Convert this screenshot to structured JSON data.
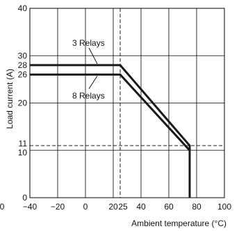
{
  "chart_data": {
    "type": "line",
    "title": "",
    "xlabel": "Ambient temperature (°C)",
    "ylabel": "Load current (A)",
    "xlim": [
      -40,
      100
    ],
    "ylim": [
      0,
      40
    ],
    "x_ticks": [
      -40,
      -20,
      0,
      20,
      25,
      40,
      60,
      80,
      100
    ],
    "x_tick_labels": [
      "−40",
      "−20",
      "0",
      "20",
      "25",
      "40",
      "60",
      "80",
      "100"
    ],
    "y_ticks": [
      0,
      10,
      11,
      20,
      26,
      28,
      30,
      40
    ],
    "y_tick_labels": [
      "0",
      "10",
      "11",
      "20",
      "26",
      "28",
      "30",
      "40"
    ],
    "x_gridlines": [
      -20,
      0,
      20,
      40,
      60,
      80
    ],
    "y_gridlines": [
      10,
      20,
      30
    ],
    "left_edge_label": "0",
    "grid": true,
    "series": [
      {
        "name": "3 Relays",
        "x": [
          -40,
          25,
          75,
          75
        ],
        "y": [
          28,
          28,
          11,
          0
        ]
      },
      {
        "name": "8 Relays",
        "x": [
          -40,
          25,
          75,
          75
        ],
        "y": [
          26,
          26,
          10,
          0
        ]
      }
    ],
    "reference_lines": [
      {
        "orientation": "vertical",
        "value": 25,
        "style": "dashed"
      },
      {
        "orientation": "horizontal",
        "value": 11,
        "style": "dashed"
      }
    ],
    "annotations": [
      {
        "text": "3 Relays",
        "series": "3 Relays"
      },
      {
        "text": "8 Relays",
        "series": "8 Relays"
      }
    ],
    "colors": {
      "curve": "#1a1a1a",
      "grid": "#000000",
      "background": "#ffffff"
    }
  }
}
